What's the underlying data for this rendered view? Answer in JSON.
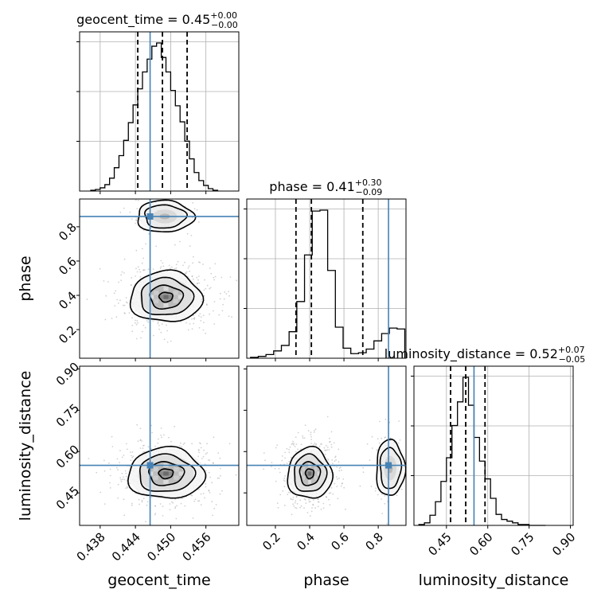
{
  "chart_data": {
    "type": "corner",
    "parameters": [
      "geocent_time",
      "phase",
      "luminosity_distance"
    ],
    "ranges": {
      "geocent_time": [
        0.4345,
        0.4616
      ],
      "phase": [
        0.033,
        0.962
      ],
      "luminosity_distance": [
        0.332,
        0.91
      ]
    },
    "truth": {
      "geocent_time": 0.4465,
      "phase": 0.86,
      "luminosity_distance": 0.55
    },
    "titles": [
      {
        "param": "geocent_time",
        "prefix": "geocent_time = ",
        "median": "0.45",
        "plus": "+0.00",
        "minus": "−0.00"
      },
      {
        "param": "phase",
        "prefix": "phase = ",
        "median": "0.41",
        "plus": "+0.30",
        "minus": "−0.09"
      },
      {
        "param": "luminosity_distance",
        "prefix": "luminosity_distance = ",
        "median": "0.52",
        "plus": "+0.07",
        "minus": "−0.05"
      }
    ],
    "ticks": {
      "geocent_time": {
        "values": [
          0.438,
          0.444,
          0.45,
          0.456
        ],
        "labels": [
          "0.438",
          "0.444",
          "0.450",
          "0.456"
        ]
      },
      "phase": {
        "values": [
          0.2,
          0.4,
          0.6,
          0.8
        ],
        "labels": [
          "0.2",
          "0.4",
          "0.6",
          "0.8"
        ]
      },
      "luminosity_distance": {
        "values": [
          0.45,
          0.6,
          0.75,
          0.9
        ],
        "labels": [
          "0.45",
          "0.60",
          "0.75",
          "0.90"
        ]
      }
    },
    "marginals": {
      "geocent_time": {
        "edges": [
          0.4364,
          0.4372,
          0.438,
          0.4388,
          0.4396,
          0.4404,
          0.4412,
          0.442,
          0.4428,
          0.4436,
          0.4444,
          0.4452,
          0.446,
          0.4468,
          0.4476,
          0.4484,
          0.4492,
          0.45,
          0.4508,
          0.4516,
          0.4524,
          0.4532,
          0.454,
          0.4548,
          0.4556,
          0.4564,
          0.4572,
          0.458
        ],
        "counts": [
          1,
          2,
          4,
          8,
          16,
          29,
          44,
          63,
          85,
          107,
          127,
          148,
          164,
          180,
          184,
          166,
          148,
          125,
          106,
          86,
          62,
          40,
          23,
          13,
          7,
          3,
          1
        ],
        "quantiles": [
          0.4444,
          0.4486,
          0.4528
        ]
      },
      "phase": {
        "edges": [
          0.055,
          0.1,
          0.145,
          0.19,
          0.235,
          0.28,
          0.325,
          0.37,
          0.415,
          0.46,
          0.505,
          0.55,
          0.595,
          0.64,
          0.685,
          0.73,
          0.775,
          0.82,
          0.865,
          0.91,
          0.955
        ],
        "counts": [
          1,
          2,
          4,
          8,
          14,
          29,
          62,
          113,
          161,
          162,
          96,
          34,
          11,
          5,
          6,
          10,
          19,
          27,
          33,
          32
        ],
        "quantiles": [
          0.32,
          0.41,
          0.71
        ]
      },
      "luminosity_distance": {
        "edges": [
          0.35,
          0.37,
          0.39,
          0.41,
          0.43,
          0.45,
          0.47,
          0.49,
          0.51,
          0.53,
          0.55,
          0.57,
          0.59,
          0.61,
          0.63,
          0.65,
          0.67,
          0.69,
          0.71,
          0.73,
          0.75,
          0.77,
          0.79,
          0.81
        ],
        "counts": [
          1,
          3,
          12,
          28,
          52,
          80,
          118,
          146,
          175,
          142,
          104,
          76,
          55,
          32,
          13,
          7,
          5,
          3,
          1,
          1,
          0,
          0,
          0
        ],
        "quantiles": [
          0.465,
          0.52,
          0.59
        ]
      }
    },
    "contours": {
      "geocent_time|phase": {
        "centers": [
          {
            "x": 0.4492,
            "y": 0.39,
            "sx": 0.0033,
            "sy": 0.08,
            "w": 1.0
          },
          {
            "x": 0.449,
            "y": 0.86,
            "sx": 0.0026,
            "sy": 0.05,
            "w": 0.22
          }
        ],
        "levels": [
          "outer",
          "middle",
          "inner",
          "core"
        ]
      },
      "geocent_time|luminosity_distance": {
        "centers": [
          {
            "x": 0.4492,
            "y": 0.52,
            "sx": 0.0035,
            "sy": 0.05,
            "w": 1.0
          }
        ],
        "levels": [
          "outer",
          "middle",
          "inner",
          "core"
        ]
      },
      "phase|luminosity_distance": {
        "centers": [
          {
            "x": 0.4,
            "y": 0.52,
            "sx": 0.07,
            "sy": 0.05,
            "w": 1.0
          },
          {
            "x": 0.87,
            "y": 0.54,
            "sx": 0.045,
            "sy": 0.055,
            "w": 0.25
          }
        ],
        "levels": [
          "outer",
          "middle",
          "inner",
          "core"
        ]
      }
    },
    "colors": {
      "line": "#000000",
      "truth": "#4682b4",
      "grid": "#b0b0b0",
      "scatter": "#9a9a9a"
    }
  }
}
